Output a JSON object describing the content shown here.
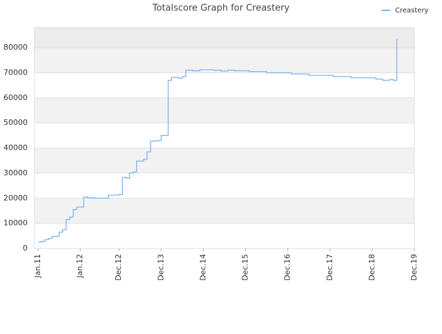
{
  "chart_data": {
    "type": "line",
    "step": true,
    "title": "Totalscore Graph for Creastery",
    "x": [
      "2011-01",
      "2011-02",
      "2011-03",
      "2011-04",
      "2011-05",
      "2011-07",
      "2011-08",
      "2011-09",
      "2011-10",
      "2011-11",
      "2011-12",
      "2012-02",
      "2012-03",
      "2012-05",
      "2012-09",
      "2012-12",
      "2013-01",
      "2013-02",
      "2013-03",
      "2013-04",
      "2013-05",
      "2013-07",
      "2013-08",
      "2013-09",
      "2013-11",
      "2013-12",
      "2014-02",
      "2014-03",
      "2014-05",
      "2014-06",
      "2014-07",
      "2014-09",
      "2014-11",
      "2015-03",
      "2015-05",
      "2015-07",
      "2015-09",
      "2016-01",
      "2016-06",
      "2017-01",
      "2017-06",
      "2018-01",
      "2018-06",
      "2019-01",
      "2019-03",
      "2019-05",
      "2019-06",
      "2019-07"
    ],
    "series": [
      {
        "name": "Creastery",
        "color": "#7cb5ec",
        "values": [
          2500,
          2800,
          3500,
          4000,
          4800,
          6500,
          7500,
          11500,
          12500,
          15500,
          16500,
          20500,
          20200,
          20000,
          21200,
          21500,
          28300,
          28000,
          30000,
          30500,
          34800,
          35500,
          38500,
          42800,
          43000,
          45000,
          67000,
          68200,
          67800,
          68500,
          71000,
          70800,
          71200,
          71000,
          70700,
          71000,
          70800,
          70500,
          70000,
          69500,
          69000,
          68500,
          68000,
          67500,
          67000,
          67300,
          67000,
          83500
        ]
      }
    ],
    "xlim": [
      "2010-12",
      "2019-12"
    ],
    "xticks": [
      {
        "value": "2011-01",
        "label": "Jan.11"
      },
      {
        "value": "2012-01",
        "label": "Jan.12"
      },
      {
        "value": "2012-12",
        "label": "Dec.12"
      },
      {
        "value": "2013-12",
        "label": "Dec.13"
      },
      {
        "value": "2014-12",
        "label": "Dec.14"
      },
      {
        "value": "2015-12",
        "label": "Dec.15"
      },
      {
        "value": "2016-12",
        "label": "Dec.16"
      },
      {
        "value": "2017-12",
        "label": "Dec.17"
      },
      {
        "value": "2018-12",
        "label": "Dec.18"
      },
      {
        "value": "2019-12",
        "label": "Dec.19"
      }
    ],
    "ylim": [
      0,
      88000
    ],
    "yticks": [
      0,
      10000,
      20000,
      30000,
      40000,
      50000,
      60000,
      70000,
      80000
    ],
    "grid": true,
    "legend": "top-right"
  }
}
